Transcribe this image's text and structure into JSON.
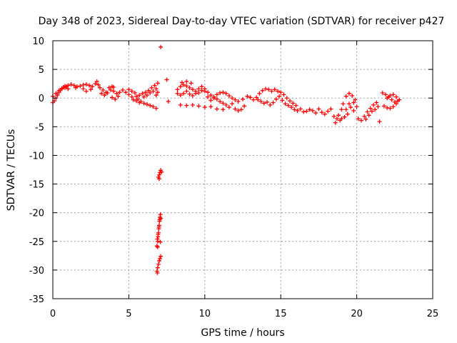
{
  "chart_data": {
    "type": "scatter",
    "title": "Day 348 of 2023, Sidereal Day-to-day VTEC variation (SDTVAR) for receiver p427",
    "xlabel": "GPS time / hours",
    "ylabel": "SDTVAR / TECUs",
    "xlim": [
      0,
      25
    ],
    "ylim": [
      -35,
      10
    ],
    "xticks": [
      "0",
      "5",
      "10",
      "15",
      "20",
      "25"
    ],
    "yticks": [
      "10",
      "5",
      "0",
      "-5",
      "-10",
      "-15",
      "-20",
      "-25",
      "-30",
      "-35"
    ],
    "grid": true,
    "marker": "+",
    "color": "#ff0000",
    "series": [
      {
        "name": "SDTVAR",
        "points": [
          [
            0.0,
            -0.8
          ],
          [
            0.1,
            -0.5
          ],
          [
            0.2,
            0.0
          ],
          [
            0.3,
            0.5
          ],
          [
            0.4,
            1.0
          ],
          [
            0.5,
            1.4
          ],
          [
            0.6,
            1.7
          ],
          [
            0.7,
            1.9
          ],
          [
            0.8,
            2.1
          ],
          [
            0.9,
            2.0
          ],
          [
            0.0,
            0.3
          ],
          [
            0.2,
            0.8
          ],
          [
            0.4,
            1.3
          ],
          [
            0.6,
            1.6
          ],
          [
            0.8,
            1.8
          ],
          [
            1.0,
            2.2
          ],
          [
            1.2,
            2.4
          ],
          [
            1.4,
            2.2
          ],
          [
            1.6,
            2.0
          ],
          [
            1.8,
            2.1
          ],
          [
            2.0,
            2.3
          ],
          [
            2.2,
            2.4
          ],
          [
            2.4,
            2.2
          ],
          [
            2.6,
            2.0
          ],
          [
            2.8,
            2.5
          ],
          [
            2.9,
            2.9
          ],
          [
            3.0,
            2.3
          ],
          [
            2.5,
            1.5
          ],
          [
            2.2,
            1.2
          ],
          [
            2.0,
            1.6
          ],
          [
            1.5,
            1.8
          ],
          [
            1.0,
            1.6
          ],
          [
            3.1,
            1.8
          ],
          [
            3.3,
            1.4
          ],
          [
            3.5,
            1.0
          ],
          [
            3.2,
            0.8
          ],
          [
            3.4,
            0.5
          ],
          [
            3.6,
            0.9
          ],
          [
            3.8,
            1.4
          ],
          [
            4.0,
            1.2
          ],
          [
            4.2,
            0.8
          ],
          [
            4.3,
            0.3
          ],
          [
            4.1,
            -0.2
          ],
          [
            3.9,
            0.1
          ],
          [
            3.7,
            1.8
          ],
          [
            3.9,
            2.0
          ],
          [
            4.0,
            1.9
          ],
          [
            4.4,
            1.0
          ],
          [
            4.6,
            1.4
          ],
          [
            4.8,
            1.0
          ],
          [
            5.0,
            0.6
          ],
          [
            5.2,
            0.2
          ],
          [
            5.3,
            -0.3
          ],
          [
            5.0,
            1.5
          ],
          [
            5.2,
            1.2
          ],
          [
            5.4,
            0.9
          ],
          [
            5.5,
            0.3
          ],
          [
            5.6,
            -0.2
          ],
          [
            5.8,
            -0.6
          ],
          [
            6.0,
            -0.9
          ],
          [
            6.2,
            -1.1
          ],
          [
            6.4,
            -1.3
          ],
          [
            6.6,
            -1.5
          ],
          [
            6.8,
            -1.8
          ],
          [
            5.7,
            0.5
          ],
          [
            5.9,
            0.8
          ],
          [
            6.1,
            1.0
          ],
          [
            6.3,
            1.3
          ],
          [
            6.5,
            1.8
          ],
          [
            6.7,
            2.2
          ],
          [
            6.9,
            2.6
          ],
          [
            6.0,
            0.2
          ],
          [
            6.2,
            0.5
          ],
          [
            6.4,
            0.9
          ],
          [
            6.6,
            1.2
          ],
          [
            6.8,
            1.6
          ],
          [
            5.5,
            -0.5
          ],
          [
            5.7,
            -0.8
          ],
          [
            6.9,
            1.0
          ],
          [
            6.8,
            0.5
          ],
          [
            7.1,
            8.9
          ],
          [
            7.5,
            3.2
          ],
          [
            7.6,
            -0.6
          ],
          [
            6.95,
            -13.8
          ],
          [
            7.0,
            -13.4
          ],
          [
            7.05,
            -13.0
          ],
          [
            7.1,
            -12.6
          ],
          [
            7.15,
            -12.9
          ],
          [
            7.0,
            -14.1
          ],
          [
            6.85,
            -25.8
          ],
          [
            6.9,
            -25.0
          ],
          [
            6.92,
            -24.2
          ],
          [
            6.95,
            -23.5
          ],
          [
            6.97,
            -22.8
          ],
          [
            7.0,
            -22.2
          ],
          [
            7.02,
            -21.5
          ],
          [
            7.05,
            -20.8
          ],
          [
            7.08,
            -20.3
          ],
          [
            7.1,
            -21.0
          ],
          [
            6.88,
            -24.6
          ],
          [
            6.93,
            -23.8
          ],
          [
            6.98,
            -22.5
          ],
          [
            7.03,
            -21.2
          ],
          [
            7.07,
            -25.1
          ],
          [
            6.9,
            -26.0
          ],
          [
            6.85,
            -30.2
          ],
          [
            6.9,
            -29.6
          ],
          [
            6.95,
            -29.0
          ],
          [
            7.0,
            -28.4
          ],
          [
            7.05,
            -28.0
          ],
          [
            7.1,
            -27.6
          ],
          [
            6.88,
            -30.5
          ],
          [
            8.2,
            1.5
          ],
          [
            8.4,
            2.0
          ],
          [
            8.6,
            2.3
          ],
          [
            8.8,
            2.1
          ],
          [
            9.0,
            1.8
          ],
          [
            9.2,
            1.5
          ],
          [
            9.4,
            1.2
          ],
          [
            9.6,
            0.9
          ],
          [
            9.8,
            1.3
          ],
          [
            10.0,
            1.6
          ],
          [
            8.2,
            0.8
          ],
          [
            8.4,
            0.5
          ],
          [
            8.6,
            0.8
          ],
          [
            8.8,
            1.2
          ],
          [
            9.0,
            0.7
          ],
          [
            9.2,
            0.4
          ],
          [
            9.4,
            0.8
          ],
          [
            9.6,
            1.6
          ],
          [
            9.8,
            2.0
          ],
          [
            10.0,
            1.2
          ],
          [
            8.5,
            2.7
          ],
          [
            8.8,
            2.9
          ],
          [
            9.1,
            2.6
          ],
          [
            10.2,
            1.0
          ],
          [
            10.4,
            0.5
          ],
          [
            10.6,
            0.2
          ],
          [
            10.8,
            -0.2
          ],
          [
            11.0,
            -0.6
          ],
          [
            11.2,
            -0.9
          ],
          [
            11.4,
            -1.2
          ],
          [
            10.2,
            0.2
          ],
          [
            10.4,
            -0.4
          ],
          [
            10.6,
            0.0
          ],
          [
            10.8,
            0.6
          ],
          [
            11.0,
            0.9
          ],
          [
            11.2,
            1.0
          ],
          [
            11.4,
            0.8
          ],
          [
            11.6,
            0.4
          ],
          [
            11.8,
            0.0
          ],
          [
            12.0,
            -0.3
          ],
          [
            8.4,
            -1.2
          ],
          [
            8.8,
            -1.3
          ],
          [
            9.2,
            -1.2
          ],
          [
            9.6,
            -1.4
          ],
          [
            10.0,
            -1.6
          ],
          [
            10.4,
            -1.5
          ],
          [
            10.8,
            -1.9
          ],
          [
            11.2,
            -2.0
          ],
          [
            11.6,
            -1.6
          ],
          [
            12.0,
            -1.9
          ],
          [
            12.2,
            -2.2
          ],
          [
            12.4,
            -2.0
          ],
          [
            12.6,
            -1.4
          ],
          [
            11.8,
            -1.0
          ],
          [
            12.2,
            -0.6
          ],
          [
            12.5,
            -0.2
          ],
          [
            12.8,
            0.3
          ],
          [
            13.0,
            0.1
          ],
          [
            13.2,
            -0.3
          ],
          [
            13.4,
            0.1
          ],
          [
            13.6,
            0.8
          ],
          [
            13.8,
            1.3
          ],
          [
            14.0,
            1.6
          ],
          [
            14.2,
            1.5
          ],
          [
            14.4,
            1.2
          ],
          [
            14.6,
            1.5
          ],
          [
            14.8,
            1.2
          ],
          [
            15.0,
            1.0
          ],
          [
            15.2,
            0.6
          ],
          [
            15.4,
            0.0
          ],
          [
            13.5,
            -0.3
          ],
          [
            13.7,
            -0.6
          ],
          [
            13.9,
            -0.9
          ],
          [
            14.1,
            -0.7
          ],
          [
            14.3,
            -1.2
          ],
          [
            14.5,
            -0.8
          ],
          [
            14.7,
            -0.2
          ],
          [
            14.9,
            0.3
          ],
          [
            15.1,
            -0.4
          ],
          [
            15.3,
            -1.0
          ],
          [
            15.5,
            -1.3
          ],
          [
            15.7,
            -1.6
          ],
          [
            15.9,
            -2.0
          ],
          [
            16.1,
            -2.2
          ],
          [
            16.3,
            -1.9
          ],
          [
            16.5,
            -2.4
          ],
          [
            16.7,
            -2.3
          ],
          [
            16.9,
            -2.0
          ],
          [
            17.1,
            -2.2
          ],
          [
            17.3,
            -2.6
          ],
          [
            15.6,
            -0.5
          ],
          [
            15.8,
            -0.9
          ],
          [
            16.0,
            -1.3
          ],
          [
            17.5,
            -1.9
          ],
          [
            17.7,
            -2.5
          ],
          [
            17.9,
            -2.8
          ],
          [
            18.1,
            -2.3
          ],
          [
            18.3,
            -1.9
          ],
          [
            18.5,
            -3.2
          ],
          [
            18.7,
            -3.6
          ],
          [
            18.6,
            -4.3
          ],
          [
            18.8,
            -3.0
          ],
          [
            19.0,
            -2.0
          ],
          [
            19.1,
            -1.0
          ],
          [
            19.3,
            0.3
          ],
          [
            19.5,
            0.8
          ],
          [
            19.7,
            0.4
          ],
          [
            19.9,
            -0.3
          ],
          [
            19.6,
            -1.6
          ],
          [
            19.4,
            -2.8
          ],
          [
            19.2,
            -3.3
          ],
          [
            19.0,
            -3.6
          ],
          [
            18.9,
            -3.9
          ],
          [
            19.3,
            -2.0
          ],
          [
            19.5,
            -1.0
          ],
          [
            19.8,
            -0.8
          ],
          [
            20.0,
            -1.5
          ],
          [
            19.8,
            -2.2
          ],
          [
            20.1,
            -3.6
          ],
          [
            20.3,
            -3.9
          ],
          [
            20.5,
            -3.2
          ],
          [
            20.7,
            -2.4
          ],
          [
            20.9,
            -1.8
          ],
          [
            21.1,
            -1.2
          ],
          [
            21.3,
            -0.8
          ],
          [
            21.0,
            -2.3
          ],
          [
            20.8,
            -3.0
          ],
          [
            20.6,
            -3.7
          ],
          [
            21.2,
            -2.0
          ],
          [
            21.4,
            -1.5
          ],
          [
            21.5,
            -4.1
          ],
          [
            21.7,
            0.9
          ],
          [
            21.9,
            0.6
          ],
          [
            22.1,
            0.2
          ],
          [
            22.3,
            -0.3
          ],
          [
            22.5,
            -0.7
          ],
          [
            22.7,
            -0.5
          ],
          [
            22.8,
            -0.3
          ],
          [
            21.8,
            -1.4
          ],
          [
            22.0,
            -1.7
          ],
          [
            22.2,
            -1.8
          ],
          [
            22.4,
            -1.5
          ],
          [
            22.6,
            -1.0
          ],
          [
            22.0,
            0.0
          ],
          [
            22.2,
            0.4
          ],
          [
            22.4,
            0.6
          ],
          [
            22.6,
            0.2
          ]
        ]
      }
    ]
  }
}
